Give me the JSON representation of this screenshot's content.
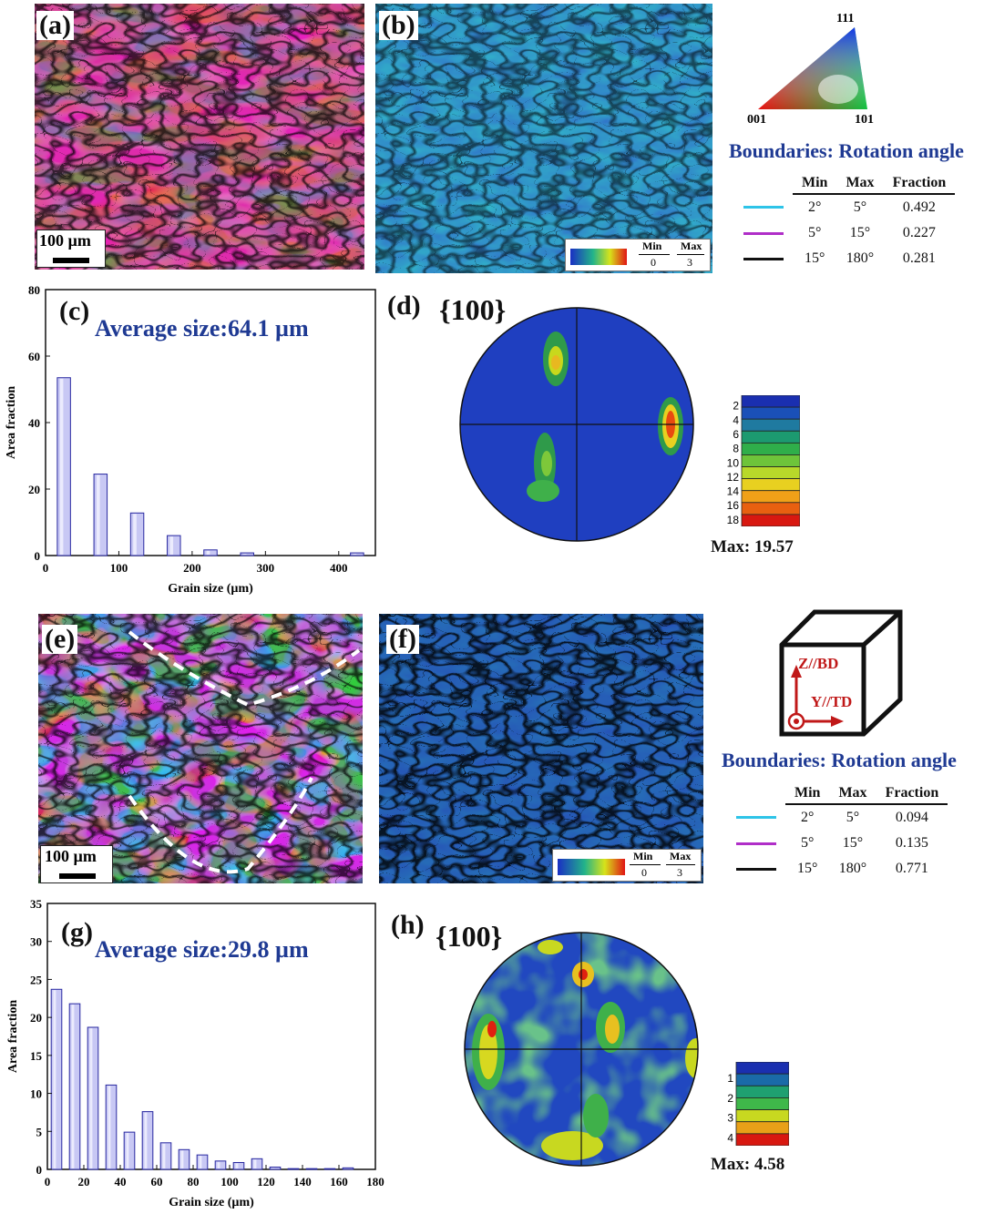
{
  "panels": {
    "a": "(a)",
    "b": "(b)",
    "c": "(c)",
    "d": "(d)",
    "e": "(e)",
    "f": "(f)",
    "g": "(g)",
    "h": "(h)"
  },
  "scale_bar": "100 µm",
  "kam_legend": {
    "min_label": "Min",
    "max_label": "Max",
    "min_value": "0",
    "max_value": "3"
  },
  "ipf_triangle": {
    "top": "111",
    "left": "001",
    "right": "101"
  },
  "boundaries_top": {
    "title": "Boundaries: Rotation angle",
    "headers": [
      "Min",
      "Max",
      "Fraction"
    ],
    "rows": [
      {
        "color": "#2ec4e8",
        "min": "2°",
        "max": "5°",
        "fraction": "0.492"
      },
      {
        "color": "#b02ec8",
        "min": "5°",
        "max": "15°",
        "fraction": "0.227"
      },
      {
        "color": "#111111",
        "min": "15°",
        "max": "180°",
        "fraction": "0.281"
      }
    ]
  },
  "boundaries_bottom": {
    "title": "Boundaries: Rotation angle",
    "headers": [
      "Min",
      "Max",
      "Fraction"
    ],
    "rows": [
      {
        "color": "#2ec4e8",
        "min": "2°",
        "max": "5°",
        "fraction": "0.094"
      },
      {
        "color": "#b02ec8",
        "min": "5°",
        "max": "15°",
        "fraction": "0.135"
      },
      {
        "color": "#111111",
        "min": "15°",
        "max": "180°",
        "fraction": "0.771"
      }
    ]
  },
  "coordinate_cube": {
    "z_label": "Z//BD",
    "y_label": "Y//TD"
  },
  "pole_figure_top": {
    "title": "{100}",
    "max": "Max: 19.57",
    "scale": [
      "2",
      "4",
      "6",
      "8",
      "10",
      "12",
      "14",
      "16",
      "18"
    ]
  },
  "pole_figure_bottom": {
    "title": "{100}",
    "max": "Max: 4.58",
    "scale": [
      "1",
      "2",
      "3",
      "4"
    ]
  },
  "chart_data": [
    {
      "type": "bar",
      "title": "Average size:64.1 µm",
      "xlabel": "Grain size (µm)",
      "ylabel": "Area fraction",
      "xlim": [
        0,
        450
      ],
      "ylim": [
        0,
        80
      ],
      "xticks": [
        0,
        100,
        200,
        300,
        400
      ],
      "yticks": [
        0,
        20,
        40,
        60,
        80
      ],
      "x": [
        25,
        75,
        125,
        175,
        225,
        275,
        425
      ],
      "values": [
        53.5,
        24.5,
        12.8,
        6,
        1.7,
        0.8,
        0.8
      ]
    },
    {
      "type": "bar",
      "title": "Average size:29.8 µm",
      "xlabel": "Grain size (µm)",
      "ylabel": "Area fraction",
      "xlim": [
        0,
        180
      ],
      "ylim": [
        0,
        35
      ],
      "xticks": [
        0,
        20,
        40,
        60,
        80,
        100,
        120,
        140,
        160,
        180
      ],
      "yticks": [
        0,
        5,
        10,
        15,
        20,
        25,
        30,
        35
      ],
      "x": [
        5,
        15,
        25,
        35,
        45,
        55,
        65,
        75,
        85,
        95,
        105,
        115,
        125,
        135,
        145,
        155,
        165
      ],
      "values": [
        23.7,
        21.8,
        18.7,
        11.1,
        4.9,
        7.6,
        3.5,
        2.6,
        1.9,
        1.1,
        0.9,
        1.4,
        0.3,
        0.1,
        0.1,
        0.1,
        0.2
      ]
    }
  ]
}
